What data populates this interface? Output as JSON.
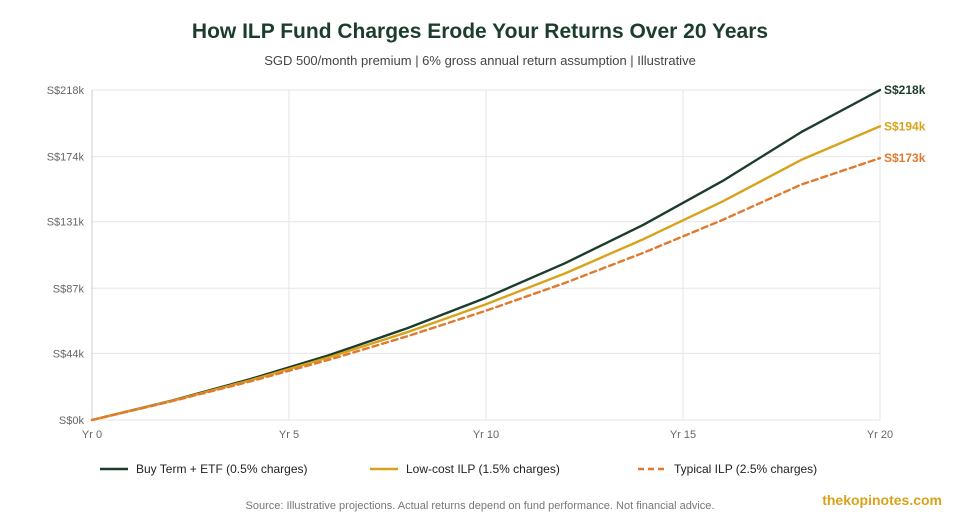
{
  "header": {
    "title": "How ILP Fund Charges Erode Your Returns Over 20 Years",
    "subtitle": "SGD 500/month premium | 6% gross annual return assumption | Illustrative"
  },
  "footer": {
    "source": "Source: Illustrative projections. Actual returns depend on fund performance. Not financial advice.",
    "brand": "thekopinotes.com"
  },
  "chart_data": {
    "type": "line",
    "title": "How ILP Fund Charges Erode Your Returns Over 20 Years",
    "subtitle": "SGD 500/month premium | 6% gross annual return assumption | Illustrative",
    "x": [
      0,
      2,
      4,
      6,
      8,
      10,
      12,
      14,
      16,
      18,
      20
    ],
    "xticks": [
      0,
      5,
      10,
      15,
      20
    ],
    "xtick_labels": [
      "Yr 0",
      "Yr 5",
      "Yr 10",
      "Yr 15",
      "Yr 20"
    ],
    "xlim": [
      0,
      20
    ],
    "ylim": [
      0,
      218
    ],
    "yticks": [
      0,
      44,
      87,
      131,
      174,
      218
    ],
    "ytick_labels": [
      "S$0k",
      "S$44k",
      "S$87k",
      "S$131k",
      "S$174k",
      "S$218k"
    ],
    "grid": true,
    "legend": "bottom",
    "series": [
      {
        "name": "Buy Term + ETF (0.5% charges)",
        "values": [
          0,
          12.6,
          26.9,
          42.7,
          60.6,
          80.8,
          103.5,
          129.0,
          157.8,
          190.2,
          218
        ],
        "end_label": "S$218k",
        "color": "#1c3d2c",
        "dash": false
      },
      {
        "name": "Low-cost ILP (1.5% charges)",
        "values": [
          0,
          12.4,
          26.1,
          41.3,
          58.0,
          76.5,
          96.8,
          119.5,
          144.3,
          171.8,
          194
        ],
        "end_label": "S$194k",
        "color": "#d9a21b",
        "dash": false
      },
      {
        "name": "Typical ILP (2.5% charges)",
        "values": [
          0,
          12.2,
          25.4,
          39.7,
          55.3,
          72.2,
          90.5,
          110.5,
          132.1,
          155.5,
          173
        ],
        "end_label": "S$173k",
        "color": "#e07a2e",
        "dash": true
      }
    ]
  }
}
